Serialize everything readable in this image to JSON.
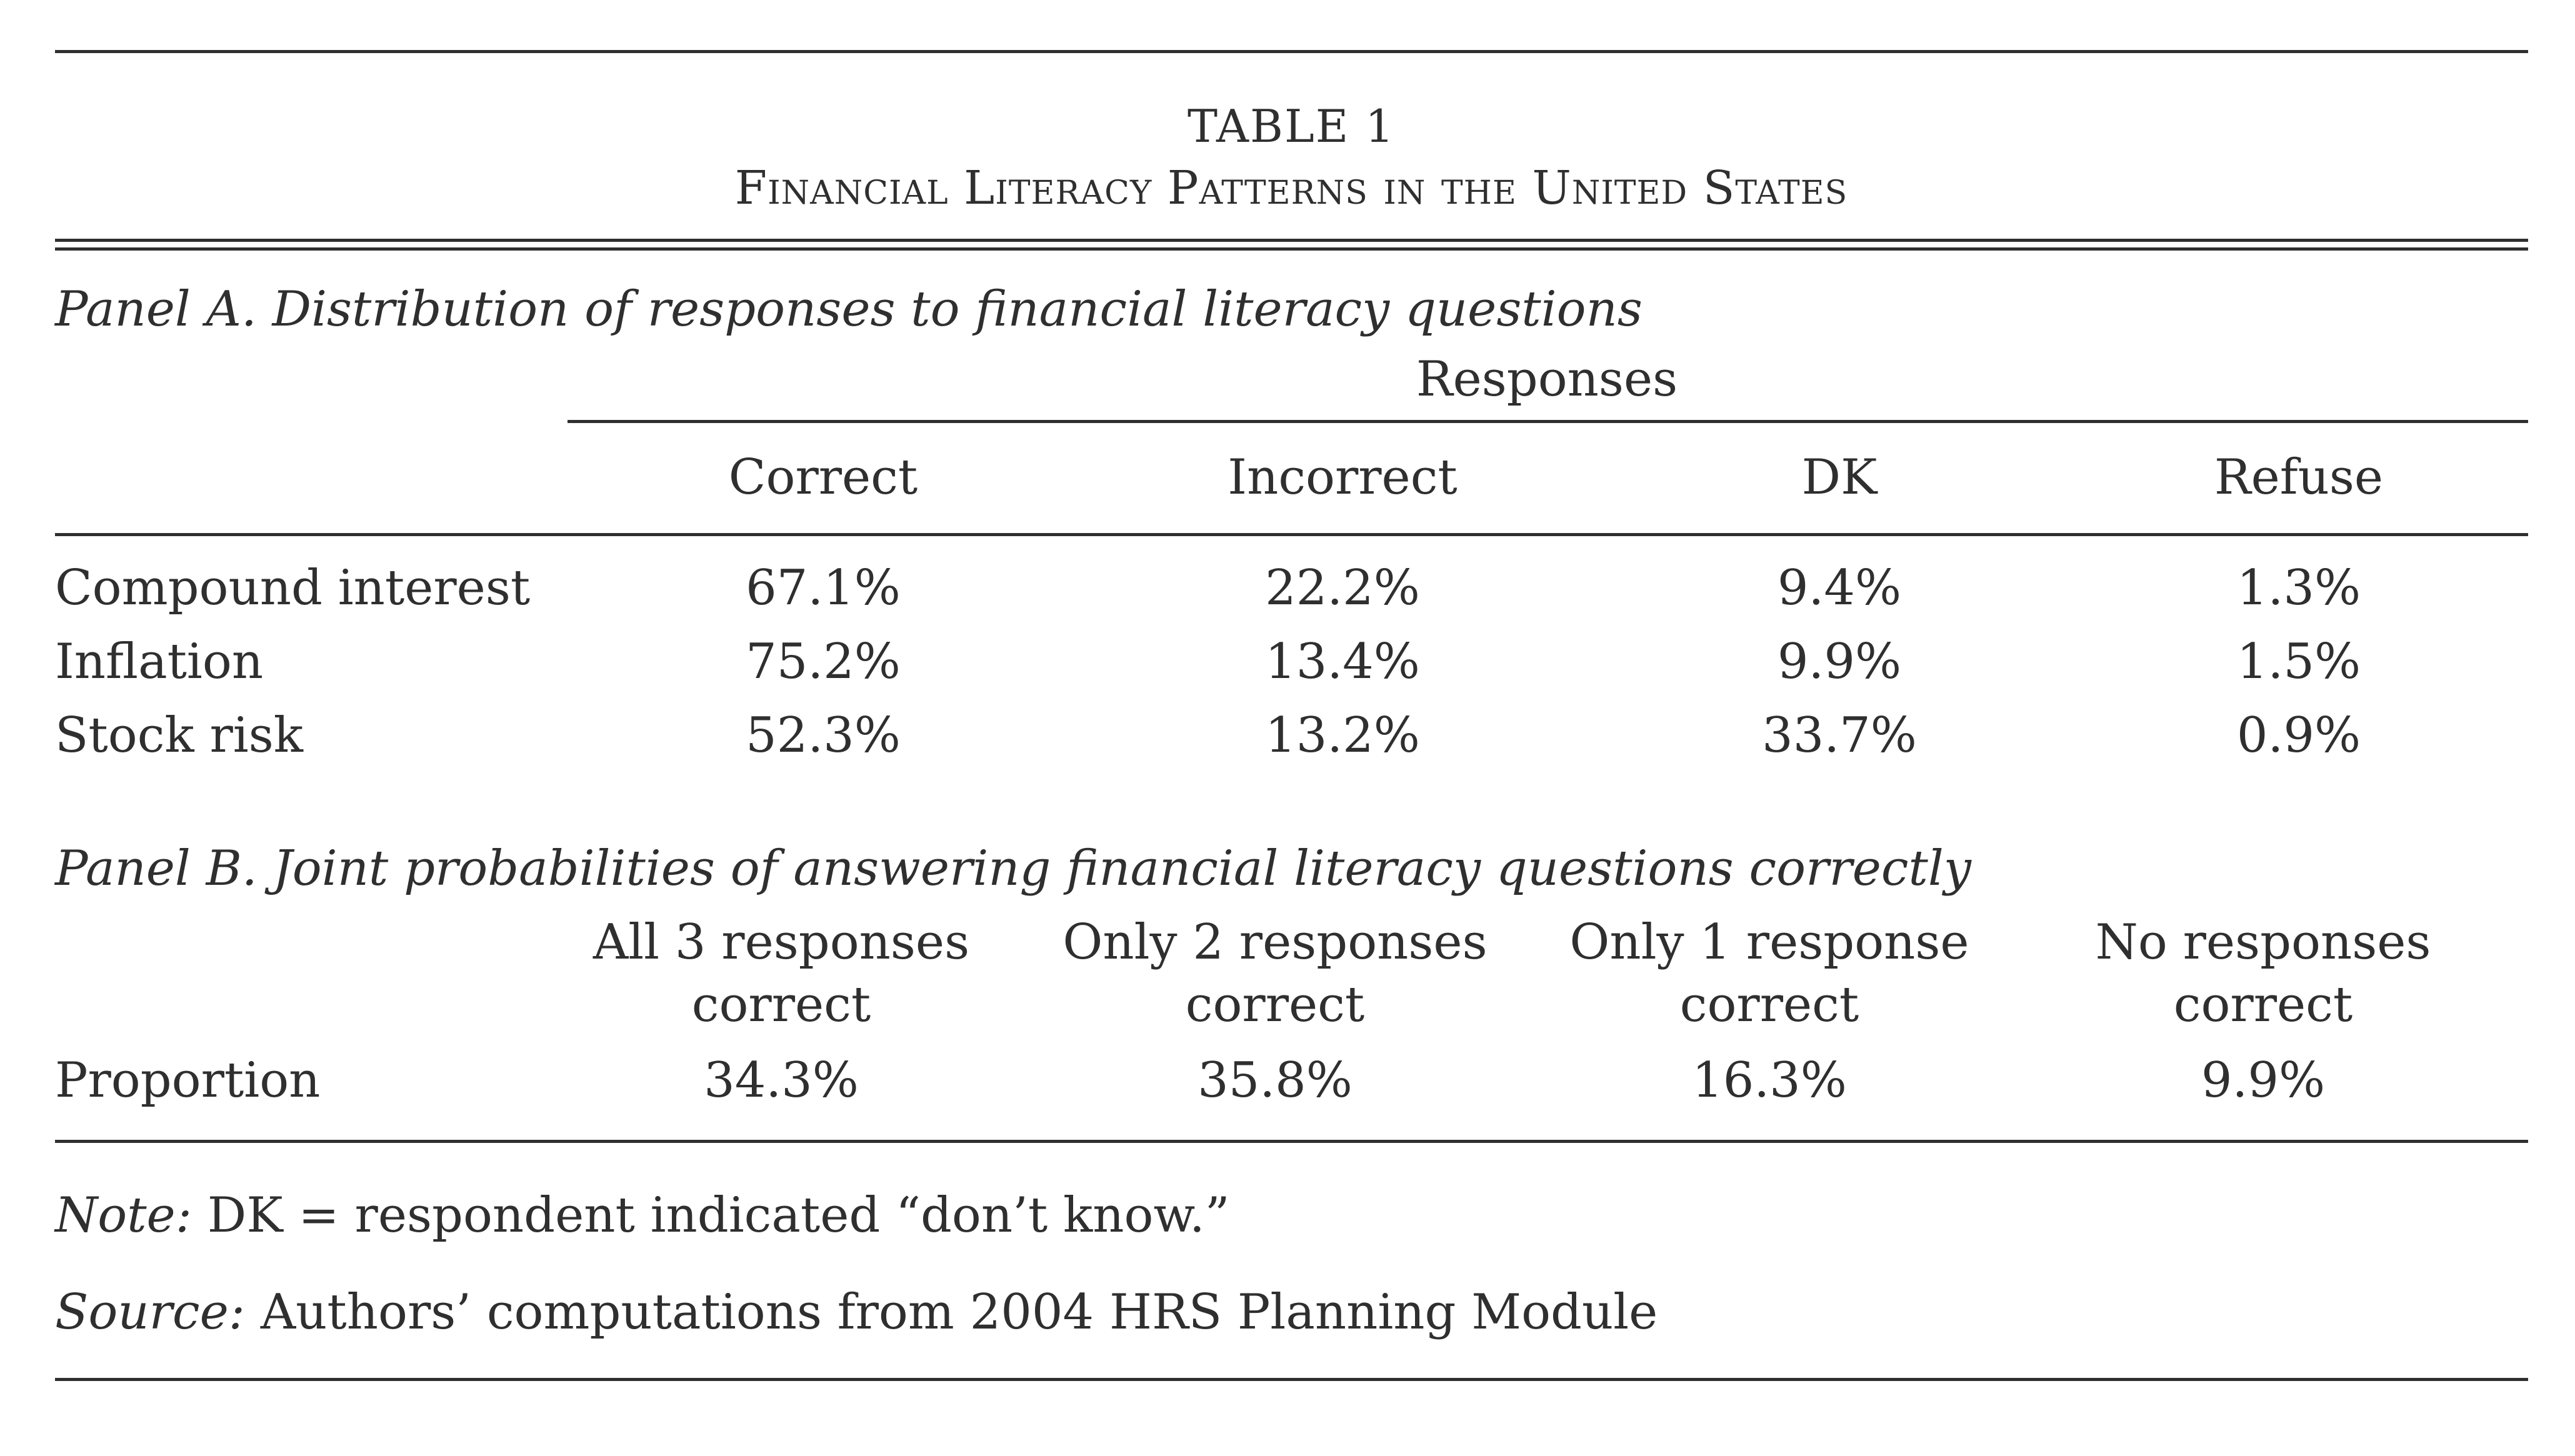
{
  "table": {
    "label": "TABLE 1",
    "title": "Financial Literacy Patterns in the United States"
  },
  "panel_a": {
    "heading": "Panel A. Distribution of responses to financial literacy questions",
    "group_header": "Responses",
    "columns": [
      "Correct",
      "Incorrect",
      "DK",
      "Refuse"
    ],
    "rows": [
      {
        "label": "Compound interest",
        "values": [
          "67.1%",
          "22.2%",
          "9.4%",
          "1.3%"
        ]
      },
      {
        "label": "Inflation",
        "values": [
          "75.2%",
          "13.4%",
          "9.9%",
          "1.5%"
        ]
      },
      {
        "label": "Stock risk",
        "values": [
          "52.3%",
          "13.2%",
          "33.7%",
          "0.9%"
        ]
      }
    ]
  },
  "panel_b": {
    "heading": "Panel B. Joint probabilities of answering financial literacy questions correctly",
    "columns": [
      {
        "line1": "All 3 responses",
        "line2": "correct"
      },
      {
        "line1": "Only 2 responses",
        "line2": "correct"
      },
      {
        "line1": "Only 1 response",
        "line2": "correct"
      },
      {
        "line1": "No responses",
        "line2": "correct"
      }
    ],
    "row": {
      "label": "Proportion",
      "values": [
        "34.3%",
        "35.8%",
        "16.3%",
        "9.9%"
      ]
    }
  },
  "notes": {
    "note_label": "Note:",
    "note_text": " DK = respondent indicated “don’t know.”",
    "source_label": "Source:",
    "source_text": " Authors’ computations from 2004 HRS Planning Module"
  }
}
